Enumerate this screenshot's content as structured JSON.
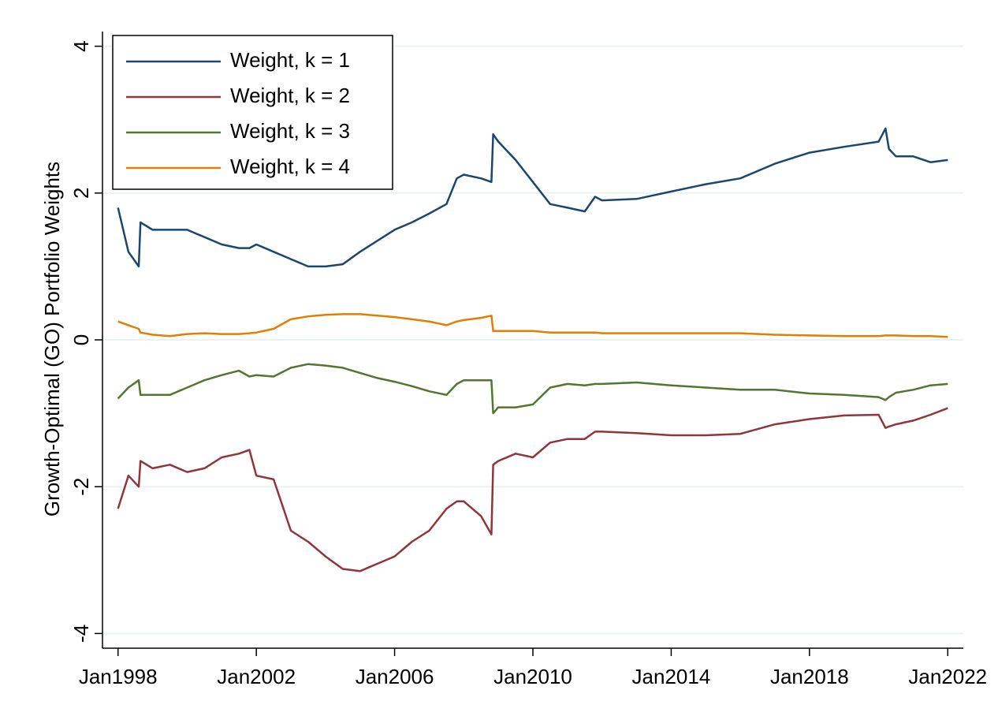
{
  "chart_data": {
    "type": "line",
    "y_label": "Growth-Optimal (GO) Portfolio Weights",
    "x": [
      1998.0,
      1998.3,
      1998.6,
      1998.65,
      1999.0,
      1999.5,
      2000.0,
      2000.5,
      2001.0,
      2001.5,
      2001.8,
      2002.0,
      2002.5,
      2003.0,
      2003.5,
      2004.0,
      2004.5,
      2005.0,
      2005.5,
      2006.0,
      2006.5,
      2007.0,
      2007.5,
      2007.8,
      2008.0,
      2008.5,
      2008.8,
      2008.85,
      2009.0,
      2009.5,
      2010.0,
      2010.5,
      2011.0,
      2011.5,
      2011.8,
      2012.0,
      2013.0,
      2014.0,
      2015.0,
      2016.0,
      2017.0,
      2018.0,
      2019.0,
      2020.0,
      2020.2,
      2020.3,
      2020.5,
      2021.0,
      2021.5,
      2022.0
    ],
    "series": [
      {
        "name": "Weight, k = 1",
        "color": "#1a476f",
        "values": [
          1.8,
          1.2,
          1.0,
          1.6,
          1.5,
          1.5,
          1.5,
          1.4,
          1.3,
          1.25,
          1.25,
          1.3,
          1.2,
          1.1,
          1.0,
          1.0,
          1.03,
          1.2,
          1.35,
          1.5,
          1.6,
          1.72,
          1.85,
          2.2,
          2.25,
          2.2,
          2.15,
          2.8,
          2.7,
          2.45,
          2.15,
          1.85,
          1.8,
          1.75,
          1.95,
          1.9,
          1.92,
          2.02,
          2.12,
          2.2,
          2.4,
          2.55,
          2.63,
          2.7,
          2.88,
          2.6,
          2.5,
          2.5,
          2.42,
          2.45
        ]
      },
      {
        "name": "Weight, k = 2",
        "color": "#90353b",
        "values": [
          -2.3,
          -1.85,
          -2.0,
          -1.65,
          -1.75,
          -1.7,
          -1.8,
          -1.75,
          -1.6,
          -1.55,
          -1.5,
          -1.85,
          -1.9,
          -2.6,
          -2.75,
          -2.95,
          -3.12,
          -3.15,
          -3.05,
          -2.95,
          -2.75,
          -2.6,
          -2.3,
          -2.2,
          -2.2,
          -2.4,
          -2.65,
          -1.7,
          -1.65,
          -1.55,
          -1.6,
          -1.4,
          -1.35,
          -1.35,
          -1.25,
          -1.25,
          -1.27,
          -1.3,
          -1.3,
          -1.28,
          -1.15,
          -1.08,
          -1.03,
          -1.02,
          -1.2,
          -1.18,
          -1.15,
          -1.1,
          -1.02,
          -0.93
        ]
      },
      {
        "name": "Weight, k = 3",
        "color": "#55752f",
        "values": [
          -0.8,
          -0.65,
          -0.55,
          -0.75,
          -0.75,
          -0.75,
          -0.65,
          -0.55,
          -0.48,
          -0.42,
          -0.5,
          -0.48,
          -0.5,
          -0.38,
          -0.33,
          -0.35,
          -0.38,
          -0.45,
          -0.52,
          -0.57,
          -0.63,
          -0.7,
          -0.75,
          -0.6,
          -0.55,
          -0.55,
          -0.55,
          -1.0,
          -0.92,
          -0.92,
          -0.88,
          -0.65,
          -0.6,
          -0.62,
          -0.6,
          -0.6,
          -0.58,
          -0.62,
          -0.65,
          -0.68,
          -0.68,
          -0.73,
          -0.75,
          -0.78,
          -0.82,
          -0.78,
          -0.72,
          -0.68,
          -0.62,
          -0.6
        ]
      },
      {
        "name": "Weight, k = 4",
        "color": "#e37e00",
        "values": [
          0.25,
          0.2,
          0.15,
          0.1,
          0.07,
          0.05,
          0.08,
          0.09,
          0.08,
          0.08,
          0.09,
          0.1,
          0.15,
          0.28,
          0.32,
          0.34,
          0.35,
          0.35,
          0.33,
          0.31,
          0.28,
          0.25,
          0.2,
          0.25,
          0.27,
          0.3,
          0.33,
          0.12,
          0.12,
          0.12,
          0.12,
          0.1,
          0.1,
          0.1,
          0.1,
          0.09,
          0.09,
          0.09,
          0.09,
          0.09,
          0.07,
          0.06,
          0.05,
          0.05,
          0.06,
          0.06,
          0.06,
          0.05,
          0.05,
          0.04
        ]
      }
    ],
    "xlim": [
      1997.55,
      2022.45
    ],
    "xticks": [
      {
        "value": 1998,
        "label": "Jan1998"
      },
      {
        "value": 2002,
        "label": "Jan2002"
      },
      {
        "value": 2006,
        "label": "Jan2006"
      },
      {
        "value": 2010,
        "label": "Jan2010"
      },
      {
        "value": 2014,
        "label": "Jan2014"
      },
      {
        "value": 2018,
        "label": "Jan2018"
      },
      {
        "value": 2022,
        "label": "Jan2022"
      }
    ],
    "ylim": [
      -4.2,
      4.2
    ],
    "yticks": [
      -4,
      -2,
      0,
      2,
      4
    ],
    "grid": true,
    "legend": "top-left"
  }
}
